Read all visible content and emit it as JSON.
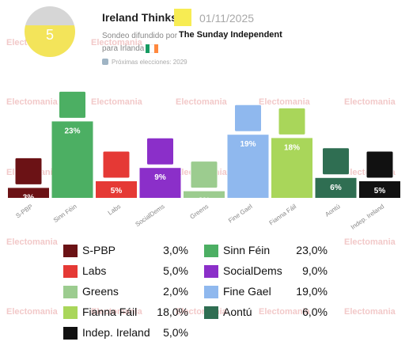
{
  "header": {
    "badge_number": "5",
    "pollster": "Ireland Thinks",
    "date": "01/11/2025",
    "sondeo_label": "Sondeo difundido por",
    "newspaper": "The Sunday Independent",
    "para_label": "para Irlanda",
    "next_elections": "Próximas elecciones: 2029"
  },
  "watermark": "Electomania",
  "colors": {
    "S-PBP": "#6b1215",
    "Sinn Féin": "#4caf63",
    "Labs": "#e53935",
    "SocialDems": "#8b2fc9",
    "Greens": "#9ccc8f",
    "Fine Gael": "#8fb8ee",
    "Fianna Fáil": "#a9d65a",
    "Aontú": "#2f6e52",
    "Indep. Ireland": "#111111"
  },
  "chart_data": {
    "type": "bar",
    "categories": [
      "S-PBP",
      "Sinn Féin",
      "Labs",
      "SocialDems",
      "Greens",
      "Fine Gael",
      "Fianna Fáil",
      "Aontú",
      "Indep. Ireland"
    ],
    "values": [
      3,
      23,
      5,
      9,
      2,
      19,
      18,
      6,
      5
    ],
    "value_labels": [
      "3%",
      "23%",
      "5%",
      "9%",
      "2%",
      "19%",
      "18%",
      "6%",
      "5%"
    ],
    "ylim": [
      0,
      25
    ]
  },
  "legend": [
    {
      "name": "S-PBP",
      "value": "3,0%",
      "icon": "people-before-profit-logo-icon"
    },
    {
      "name": "Sinn Féin",
      "value": "23,0%",
      "icon": "sinn-fein-logo-icon"
    },
    {
      "name": "Labs",
      "value": "5,0%",
      "icon": "labour-logo-icon"
    },
    {
      "name": "SocialDems",
      "value": "9,0%",
      "icon": "social-democrats-logo-icon"
    },
    {
      "name": "Greens",
      "value": "2,0%",
      "icon": "greens-logo-icon"
    },
    {
      "name": "Fine Gael",
      "value": "19,0%",
      "icon": "fine-gael-logo-icon"
    },
    {
      "name": "Fianna Fáil",
      "value": "18,0%",
      "icon": "fianna-fail-logo-icon"
    },
    {
      "name": "Aontú",
      "value": "6,0%",
      "icon": "aontu-logo-icon"
    },
    {
      "name": "Indep. Ireland",
      "value": "5,0%",
      "icon": "independent-ireland-logo-icon"
    }
  ]
}
